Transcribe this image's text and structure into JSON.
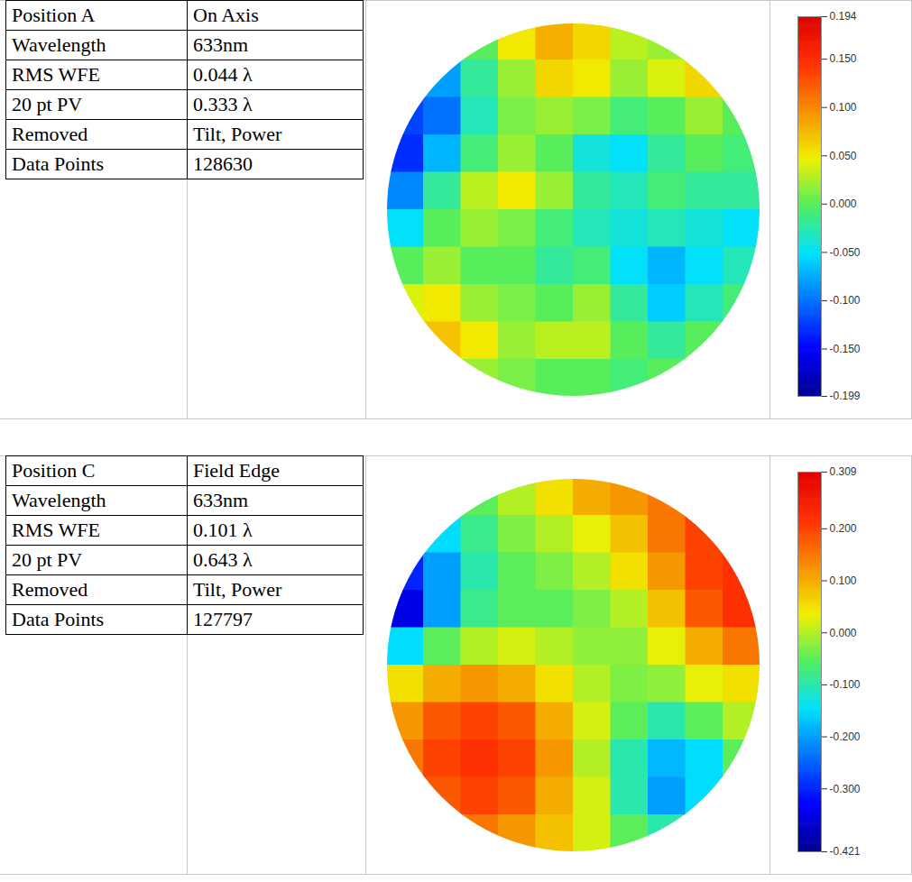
{
  "chart_data": [
    {
      "type": "heatmap",
      "table": [
        [
          "Position A",
          "On Axis"
        ],
        [
          "Wavelength",
          "633nm"
        ],
        [
          "RMS WFE",
          "0.044 λ"
        ],
        [
          "20 pt PV",
          "0.333 λ"
        ],
        [
          "Removed",
          "Tilt, Power"
        ],
        [
          "Data Points",
          "128630"
        ]
      ],
      "cells": [
        [
          null,
          null,
          0.0,
          0.05,
          0.08,
          0.06,
          0.03,
          0.02,
          null,
          null
        ],
        [
          null,
          -0.08,
          -0.02,
          0.02,
          0.06,
          0.05,
          0.02,
          0.04,
          0.06,
          null
        ],
        [
          -0.12,
          -0.1,
          -0.03,
          0.01,
          0.02,
          0.01,
          -0.01,
          0.0,
          0.02,
          0.0
        ],
        [
          -0.13,
          -0.07,
          -0.01,
          0.02,
          0.0,
          -0.04,
          -0.05,
          -0.02,
          0.0,
          -0.01
        ],
        [
          -0.09,
          -0.02,
          0.03,
          0.05,
          0.02,
          -0.02,
          -0.03,
          -0.01,
          -0.02,
          -0.02
        ],
        [
          -0.05,
          0.0,
          0.02,
          0.01,
          -0.01,
          -0.03,
          -0.04,
          -0.03,
          -0.04,
          -0.05
        ],
        [
          0.0,
          0.02,
          0.0,
          0.0,
          -0.02,
          -0.01,
          -0.05,
          -0.07,
          -0.05,
          -0.03
        ],
        [
          0.04,
          0.05,
          0.02,
          0.01,
          0.0,
          0.02,
          -0.02,
          -0.06,
          -0.03,
          -0.01
        ],
        [
          null,
          0.07,
          0.05,
          0.02,
          0.03,
          0.03,
          0.0,
          -0.02,
          0.0,
          null
        ],
        [
          null,
          null,
          0.02,
          0.01,
          0.0,
          0.0,
          -0.01,
          0.0,
          null,
          null
        ]
      ],
      "colorbar_range": [
        -0.199,
        0.194
      ],
      "colorbar_ticks": [
        0.194,
        {
          "value": 0.15,
          "label": "0.150"
        },
        {
          "value": 0.1,
          "label": "0.100"
        },
        {
          "value": 0.05,
          "label": "0.050"
        },
        {
          "value": 0,
          "label": "0.000"
        },
        {
          "value": -0.05,
          "label": "-0.050"
        },
        {
          "value": -0.1,
          "label": "-0.100"
        },
        {
          "value": -0.15,
          "label": "-0.150"
        },
        -0.199
      ]
    },
    {
      "type": "heatmap",
      "table": [
        [
          "Position C",
          "Field Edge"
        ],
        [
          "Wavelength",
          "633nm"
        ],
        [
          "RMS WFE",
          "0.101 λ"
        ],
        [
          "20 pt PV",
          "0.643 λ"
        ],
        [
          "Removed",
          "Tilt, Power"
        ],
        [
          "Data Points",
          "127797"
        ]
      ],
      "cells": [
        [
          null,
          null,
          -0.05,
          0.0,
          0.05,
          0.1,
          0.12,
          0.15,
          null,
          null
        ],
        [
          null,
          -0.15,
          -0.08,
          -0.03,
          0.0,
          0.03,
          0.08,
          0.15,
          0.2,
          null
        ],
        [
          -0.3,
          -0.2,
          -0.1,
          -0.05,
          -0.03,
          0.0,
          0.05,
          0.12,
          0.2,
          0.22
        ],
        [
          -0.35,
          -0.2,
          -0.08,
          -0.05,
          -0.05,
          -0.03,
          0.0,
          0.08,
          0.18,
          0.22
        ],
        [
          -0.15,
          -0.05,
          0.0,
          0.02,
          0.0,
          -0.02,
          -0.02,
          0.03,
          0.1,
          0.15
        ],
        [
          0.05,
          0.1,
          0.12,
          0.1,
          0.05,
          0.0,
          -0.03,
          -0.02,
          0.03,
          0.05
        ],
        [
          0.12,
          0.18,
          0.2,
          0.18,
          0.1,
          0.02,
          -0.05,
          -0.1,
          -0.05,
          0.0
        ],
        [
          0.15,
          0.2,
          0.22,
          0.2,
          0.12,
          0.0,
          -0.1,
          -0.18,
          -0.15,
          -0.05
        ],
        [
          null,
          0.18,
          0.2,
          0.18,
          0.1,
          0.02,
          -0.1,
          -0.2,
          -0.15,
          null
        ],
        [
          null,
          null,
          0.15,
          0.12,
          0.08,
          0.02,
          -0.05,
          -0.1,
          null,
          null
        ]
      ],
      "colorbar_range": [
        -0.421,
        0.309
      ],
      "colorbar_ticks": [
        0.309,
        {
          "value": 0.2,
          "label": "0.200"
        },
        {
          "value": 0.1,
          "label": "0.100"
        },
        {
          "value": 0,
          "label": "0.000"
        },
        {
          "value": -0.1,
          "label": "-0.100"
        },
        {
          "value": -0.2,
          "label": "-0.200"
        },
        {
          "value": -0.3,
          "label": "-0.300"
        },
        -0.421
      ]
    }
  ]
}
